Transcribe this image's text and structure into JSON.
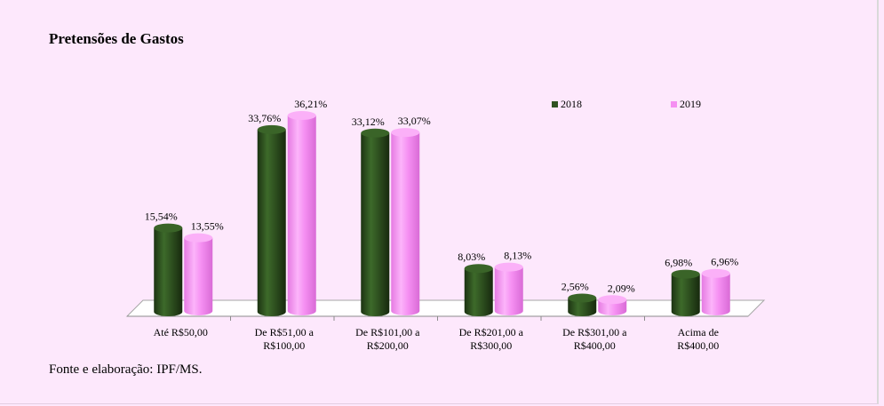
{
  "title": "Pretensões de Gastos",
  "source": "Fonte e elaboração: IPF/MS.",
  "chart_data": {
    "type": "bar",
    "title": "Pretensões de Gastos",
    "categories": [
      [
        "Até R$50,00"
      ],
      [
        "De R$51,00 a",
        "R$100,00"
      ],
      [
        "De R$101,00 a",
        "R$200,00"
      ],
      [
        "De R$201,00 a",
        "R$300,00"
      ],
      [
        "De R$301,00 a",
        "R$400,00"
      ],
      [
        "Acima de",
        "R$400,00"
      ]
    ],
    "series": [
      {
        "name": "2018",
        "color": "#2f5220",
        "values": [
          15.54,
          33.76,
          33.12,
          8.03,
          2.56,
          6.98
        ],
        "labels": [
          "15,54%",
          "33,76%",
          "33,12%",
          "8,03%",
          "2,56%",
          "6,98%"
        ]
      },
      {
        "name": "2019",
        "color": "#f58ff2",
        "values": [
          13.55,
          36.21,
          33.07,
          8.13,
          2.09,
          6.96
        ],
        "labels": [
          "13,55%",
          "36,21%",
          "33,07%",
          "8,13%",
          "2,09%",
          "6,96%"
        ]
      }
    ],
    "ylim": [
      0,
      40
    ],
    "legend": "top-right",
    "grid": false,
    "style": "3d-cylinder"
  }
}
